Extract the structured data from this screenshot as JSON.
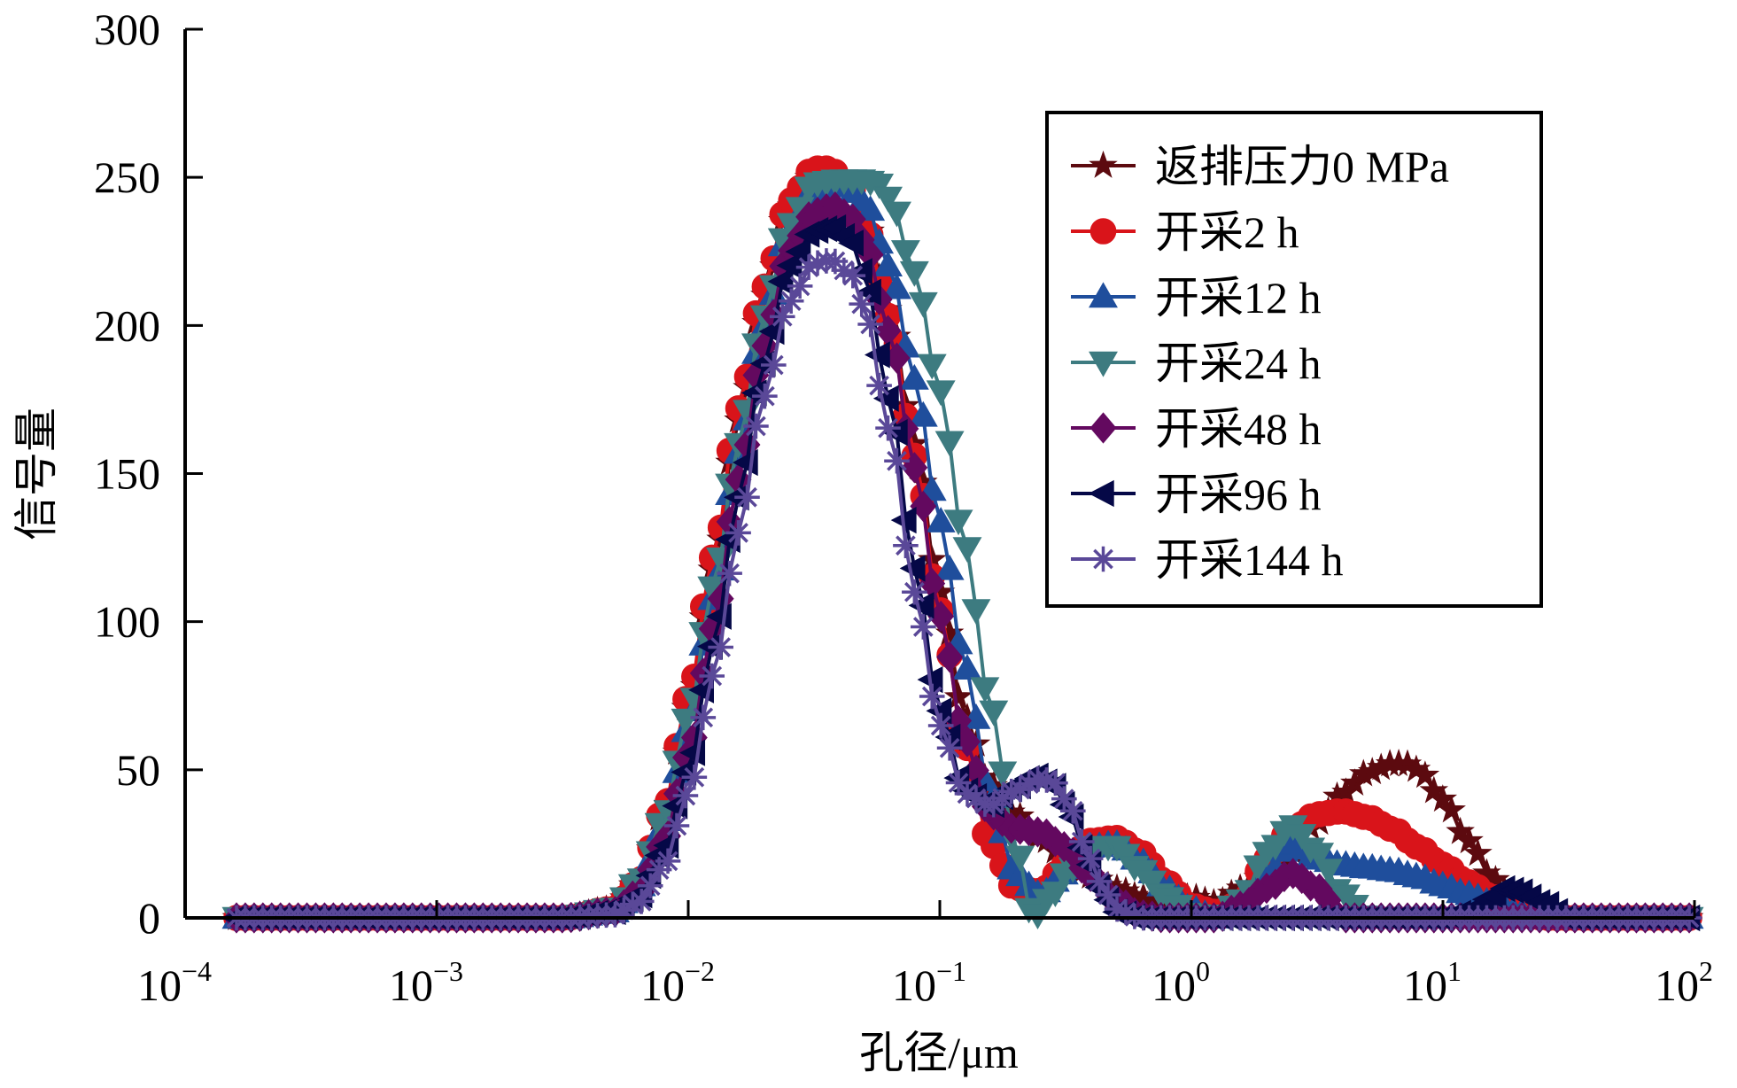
{
  "chart_data": {
    "type": "line",
    "title": "",
    "xlabel": "孔径/μm",
    "ylabel": "信号量",
    "x_scale": "log10",
    "x_note": "x values are log10(pore diameter in μm)",
    "xlim_exponent": [
      -4,
      2
    ],
    "ylim": [
      0,
      300
    ],
    "x_ticks": [
      {
        "base": "10",
        "exp": "-4"
      },
      {
        "base": "10",
        "exp": "-3"
      },
      {
        "base": "10",
        "exp": "-2"
      },
      {
        "base": "10",
        "exp": "-1"
      },
      {
        "base": "10",
        "exp": "0"
      },
      {
        "base": "10",
        "exp": "1"
      },
      {
        "base": "10",
        "exp": "2"
      }
    ],
    "y_ticks": [
      "0",
      "50",
      "100",
      "150",
      "200",
      "250",
      "300"
    ],
    "grid": false,
    "legend_position": "top-right",
    "series": [
      {
        "name": "返排压力0 MPa",
        "color": "#5c0a0f",
        "marker": "star",
        "x": [
          -3.8,
          -2.5,
          -2.3,
          -2.2,
          -2.1,
          -2.0,
          -1.9,
          -1.8,
          -1.7,
          -1.6,
          -1.5,
          -1.44,
          -1.35,
          -1.3,
          -1.2,
          -1.1,
          -1.0,
          -0.9,
          -0.8,
          -0.7,
          -0.6,
          -0.5,
          -0.4,
          -0.3,
          -0.2,
          -0.1,
          0.0,
          0.1,
          0.2,
          0.3,
          0.4,
          0.5,
          0.6,
          0.7,
          0.8,
          0.85,
          0.9,
          1.0,
          1.1,
          1.2,
          1.3,
          1.4,
          1.6,
          2.0
        ],
        "y": [
          0,
          0,
          3,
          12,
          35,
          72,
          118,
          168,
          210,
          240,
          251,
          252,
          246,
          236,
          205,
          160,
          110,
          68,
          45,
          35,
          27,
          20,
          14,
          10,
          7,
          6,
          7,
          5,
          10,
          15,
          22,
          32,
          42,
          49,
          52,
          52,
          50,
          40,
          26,
          13,
          4,
          0,
          0,
          0
        ]
      },
      {
        "name": "开采2 h",
        "color": "#d9141a",
        "marker": "circle",
        "x": [
          -3.8,
          -2.5,
          -2.3,
          -2.2,
          -2.1,
          -2.0,
          -1.9,
          -1.8,
          -1.7,
          -1.6,
          -1.5,
          -1.44,
          -1.35,
          -1.3,
          -1.2,
          -1.1,
          -1.0,
          -0.9,
          -0.8,
          -0.7,
          -0.6,
          -0.5,
          -0.4,
          -0.3,
          -0.2,
          -0.1,
          0.0,
          0.1,
          0.2,
          0.3,
          0.4,
          0.5,
          0.6,
          0.7,
          0.8,
          0.9,
          1.0,
          1.1,
          1.2,
          1.3,
          1.4,
          1.5,
          2.0
        ],
        "y": [
          0,
          0,
          3,
          12,
          36,
          75,
          122,
          172,
          213,
          242,
          253,
          253,
          246,
          235,
          203,
          156,
          104,
          58,
          25,
          10,
          9,
          18,
          26,
          27,
          22,
          12,
          4,
          2,
          5,
          20,
          30,
          35,
          36,
          34,
          30,
          24,
          18,
          12,
          7,
          3,
          0,
          0,
          0
        ]
      },
      {
        "name": "开采12 h",
        "color": "#1f4e9c",
        "marker": "triangle-up",
        "x": [
          -3.8,
          -2.5,
          -2.3,
          -2.2,
          -2.1,
          -2.0,
          -1.9,
          -1.8,
          -1.7,
          -1.6,
          -1.5,
          -1.4,
          -1.38,
          -1.3,
          -1.2,
          -1.1,
          -1.0,
          -0.9,
          -0.8,
          -0.7,
          -0.6,
          -0.5,
          -0.4,
          -0.3,
          -0.2,
          -0.1,
          0.0,
          0.1,
          0.2,
          0.3,
          0.4,
          0.5,
          0.6,
          0.7,
          0.8,
          0.9,
          1.0,
          1.1,
          1.2,
          1.3,
          1.4,
          2.0
        ],
        "y": [
          0,
          0,
          2,
          10,
          30,
          64,
          108,
          157,
          200,
          232,
          246,
          247,
          247,
          242,
          220,
          182,
          134,
          85,
          42,
          15,
          8,
          15,
          24,
          25,
          19,
          10,
          3,
          0,
          4,
          14,
          25,
          20,
          18,
          17,
          16,
          14,
          11,
          8,
          5,
          2,
          0,
          0
        ]
      },
      {
        "name": "开采24 h",
        "color": "#3d7b80",
        "marker": "triangle-down",
        "x": [
          -3.8,
          -2.5,
          -2.3,
          -2.2,
          -2.1,
          -2.0,
          -1.9,
          -1.8,
          -1.7,
          -1.6,
          -1.5,
          -1.4,
          -1.3,
          -1.25,
          -1.2,
          -1.1,
          -1.0,
          -0.9,
          -0.8,
          -0.7,
          -0.63,
          -0.55,
          -0.5,
          -0.4,
          -0.3,
          -0.2,
          -0.1,
          0.0,
          0.1,
          0.2,
          0.3,
          0.4,
          0.5,
          0.6,
          0.7,
          2.0
        ],
        "y": [
          0,
          0,
          3,
          12,
          33,
          68,
          112,
          160,
          203,
          234,
          248,
          249,
          249,
          248,
          243,
          218,
          178,
          126,
          72,
          25,
          0,
          8,
          15,
          24,
          24,
          16,
          7,
          1,
          0,
          6,
          22,
          31,
          22,
          8,
          0,
          0
        ]
      },
      {
        "name": "开采48 h",
        "color": "#63095f",
        "marker": "diamond",
        "x": [
          -3.8,
          -2.5,
          -2.3,
          -2.2,
          -2.1,
          -2.0,
          -1.9,
          -1.8,
          -1.7,
          -1.6,
          -1.5,
          -1.42,
          -1.35,
          -1.3,
          -1.2,
          -1.1,
          -1.0,
          -0.9,
          -0.8,
          -0.7,
          -0.6,
          -0.5,
          -0.4,
          -0.3,
          -0.2,
          -0.1,
          0.0,
          0.1,
          0.2,
          0.3,
          0.4,
          0.5,
          0.6,
          2.0
        ],
        "y": [
          0,
          0,
          2,
          8,
          25,
          55,
          98,
          148,
          193,
          225,
          238,
          240,
          236,
          228,
          198,
          152,
          102,
          60,
          35,
          30,
          29,
          24,
          14,
          6,
          1,
          0,
          0,
          0,
          4,
          10,
          15,
          10,
          0,
          0
        ]
      },
      {
        "name": "开采96 h",
        "color": "#050847",
        "marker": "triangle-left",
        "x": [
          -3.8,
          -2.5,
          -2.3,
          -2.2,
          -2.1,
          -2.0,
          -1.9,
          -1.8,
          -1.7,
          -1.6,
          -1.5,
          -1.42,
          -1.35,
          -1.3,
          -1.2,
          -1.1,
          -1.0,
          -0.9,
          -0.8,
          -0.7,
          -0.62,
          -0.55,
          -0.5,
          -0.4,
          -0.35,
          -0.3,
          -0.2,
          1.0,
          1.1,
          1.2,
          1.25,
          1.3,
          1.4,
          1.5,
          2.0
        ],
        "y": [
          0,
          0,
          2,
          7,
          22,
          50,
          92,
          142,
          187,
          220,
          232,
          233,
          228,
          217,
          175,
          118,
          70,
          43,
          38,
          44,
          48,
          45,
          38,
          18,
          8,
          2,
          0,
          0,
          2,
          7,
          10,
          9,
          5,
          0,
          0
        ]
      },
      {
        "name": "开采144 h",
        "color": "#5a4898",
        "marker": "asterisk",
        "x": [
          -3.8,
          -2.5,
          -2.3,
          -2.2,
          -2.1,
          -2.0,
          -1.9,
          -1.8,
          -1.7,
          -1.6,
          -1.5,
          -1.43,
          -1.35,
          -1.3,
          -1.2,
          -1.1,
          -1.0,
          -0.9,
          -0.8,
          -0.7,
          -0.6,
          -0.55,
          -0.5,
          -0.4,
          -0.35,
          -0.3,
          -0.2,
          2.0
        ],
        "y": [
          0,
          0,
          1,
          5,
          17,
          42,
          82,
          130,
          176,
          208,
          221,
          222,
          217,
          206,
          165,
          110,
          65,
          42,
          38,
          43,
          47,
          46,
          40,
          20,
          10,
          3,
          0,
          0
        ]
      }
    ]
  }
}
